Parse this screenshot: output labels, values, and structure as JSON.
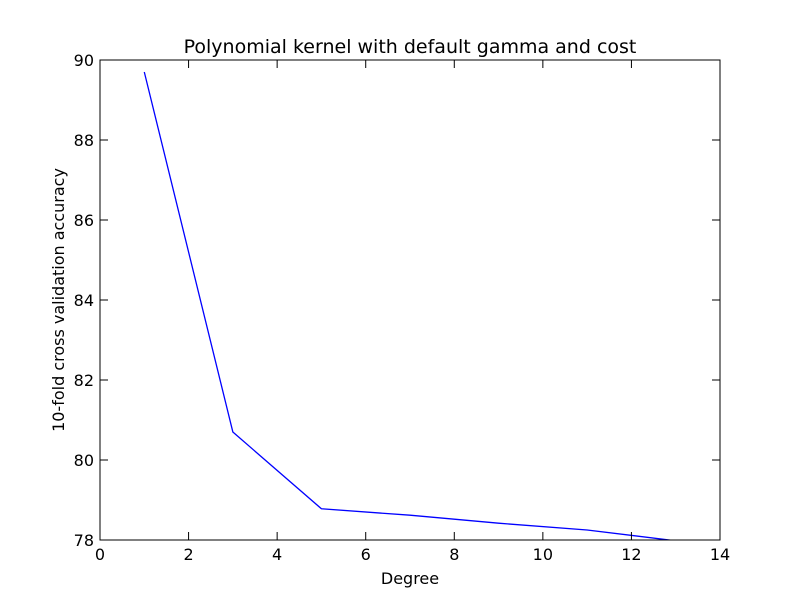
{
  "chart_data": {
    "type": "line",
    "title": "Polynomial kernel with default gamma and cost",
    "xlabel": "Degree",
    "ylabel": "10-fold cross validation accuracy",
    "xlim": [
      0,
      14
    ],
    "ylim": [
      78,
      90
    ],
    "xticks": [
      "0",
      "2",
      "4",
      "6",
      "8",
      "10",
      "12",
      "14"
    ],
    "yticks": [
      "78",
      "80",
      "82",
      "84",
      "86",
      "88",
      "90"
    ],
    "grid": false,
    "series": [
      {
        "color": "#0000ff",
        "x": [
          1,
          3,
          5,
          7,
          9,
          11,
          13
        ],
        "y": [
          89.7,
          80.7,
          78.78,
          78.62,
          78.42,
          78.25,
          77.98
        ]
      }
    ]
  }
}
